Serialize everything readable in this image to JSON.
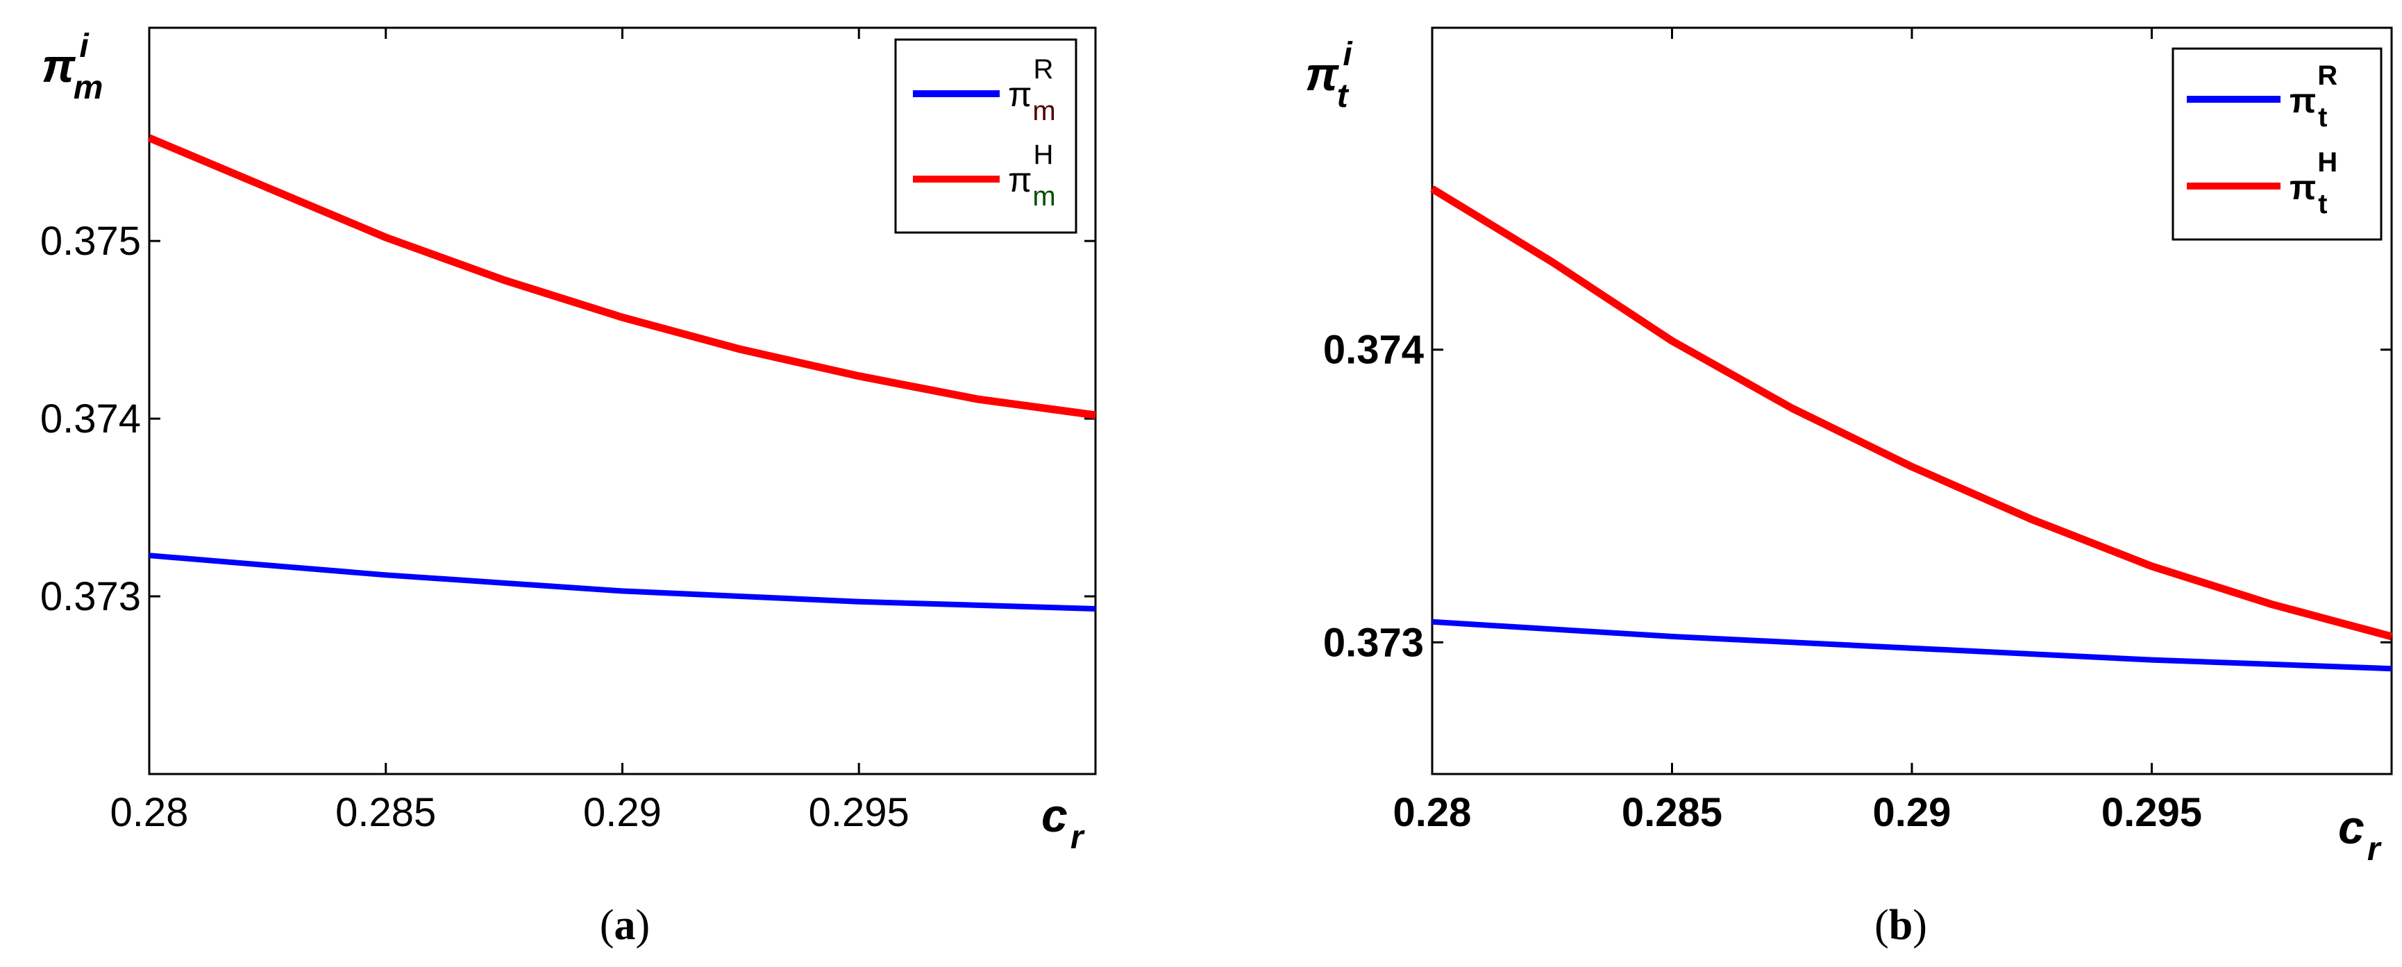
{
  "chart_data": [
    {
      "type": "line",
      "id": "a",
      "caption": {
        "open": "(",
        "letter": "a",
        "close": ")"
      },
      "ylabel": {
        "main": "π",
        "sup": "i",
        "sub": "m"
      },
      "xlabel": {
        "main": "c",
        "sub": "r"
      },
      "xlim": [
        0.28,
        0.3
      ],
      "ylim": [
        0.372,
        0.3762
      ],
      "xticks": [
        0.28,
        0.285,
        0.29,
        0.295
      ],
      "xtick_labels": [
        "0.28",
        "0.285",
        "0.29",
        "0.295"
      ],
      "yticks": [
        0.373,
        0.374,
        0.375
      ],
      "ytick_labels": [
        "0.373",
        "0.374",
        "0.375"
      ],
      "series": [
        {
          "name": "π_m^R",
          "legend": {
            "main": "π",
            "sup": "R",
            "sub": "m"
          },
          "color": "#0000ff",
          "x": [
            0.28,
            0.285,
            0.29,
            0.295,
            0.3
          ],
          "y": [
            0.37323,
            0.37312,
            0.37303,
            0.37297,
            0.37293
          ]
        },
        {
          "name": "π_m^H",
          "legend": {
            "main": "π",
            "sup": "H",
            "sub": "m"
          },
          "color": "#ff0000",
          "x": [
            0.28,
            0.2825,
            0.285,
            0.2875,
            0.29,
            0.2925,
            0.295,
            0.2975,
            0.3
          ],
          "y": [
            0.37558,
            0.3753,
            0.37502,
            0.37478,
            0.37457,
            0.37439,
            0.37424,
            0.37411,
            0.37402
          ]
        }
      ]
    },
    {
      "type": "line",
      "id": "b",
      "caption": {
        "open": "(",
        "letter": "b",
        "close": ")"
      },
      "ylabel": {
        "main": "π",
        "sup": "i",
        "sub": "t"
      },
      "xlabel": {
        "main": "c",
        "sub": "r"
      },
      "xlim": [
        0.28,
        0.3
      ],
      "ylim": [
        0.37255,
        0.3751
      ],
      "xticks": [
        0.28,
        0.285,
        0.29,
        0.295
      ],
      "xtick_labels": [
        "0.28",
        "0.285",
        "0.29",
        "0.295"
      ],
      "yticks": [
        0.373,
        0.374
      ],
      "ytick_labels": [
        "0.373",
        "0.374"
      ],
      "series": [
        {
          "name": "π_t^R",
          "legend": {
            "main": "π",
            "sup": "R",
            "sub": "t"
          },
          "color": "#0000ff",
          "x": [
            0.28,
            0.285,
            0.29,
            0.295,
            0.3
          ],
          "y": [
            0.37307,
            0.37302,
            0.37298,
            0.37294,
            0.37291
          ]
        },
        {
          "name": "π_t^H",
          "legend": {
            "main": "π",
            "sup": "H",
            "sub": "t"
          },
          "color": "#ff0000",
          "x": [
            0.28,
            0.2825,
            0.285,
            0.2875,
            0.29,
            0.2925,
            0.295,
            0.2975,
            0.3
          ],
          "y": [
            0.37455,
            0.3743,
            0.37403,
            0.3738,
            0.3736,
            0.37342,
            0.37326,
            0.37313,
            0.37302
          ]
        }
      ]
    }
  ]
}
